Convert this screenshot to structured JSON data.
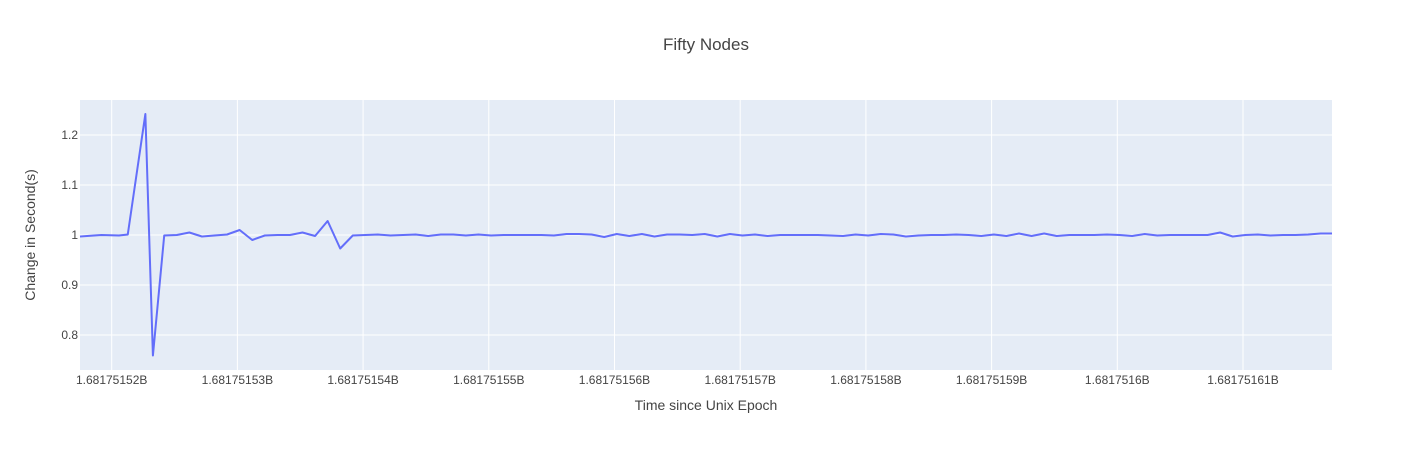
{
  "chart_data": {
    "type": "line",
    "title": "Fifty Nodes",
    "xlabel": "Time since Unix Epoch",
    "ylabel": "Change in Second(s)",
    "colors": {
      "line": "#636efa",
      "plot_bg": "#e5ecf6",
      "grid": "#ffffff",
      "text": "#444444"
    },
    "grid": true,
    "legend": "none",
    "xlim": [
      1681751517.48,
      1681751617.08
    ],
    "ylim": [
      0.73,
      1.27
    ],
    "x_ticks": [
      {
        "value": 1681751520,
        "label": "1.68175152B"
      },
      {
        "value": 1681751530,
        "label": "1.68175153B"
      },
      {
        "value": 1681751540,
        "label": "1.68175154B"
      },
      {
        "value": 1681751550,
        "label": "1.68175155B"
      },
      {
        "value": 1681751560,
        "label": "1.68175156B"
      },
      {
        "value": 1681751570,
        "label": "1.68175157B"
      },
      {
        "value": 1681751580,
        "label": "1.68175158B"
      },
      {
        "value": 1681751590,
        "label": "1.68175159B"
      },
      {
        "value": 1681751600,
        "label": "1.6817516B"
      },
      {
        "value": 1681751610,
        "label": "1.68175161B"
      }
    ],
    "y_ticks": [
      {
        "value": 0.8,
        "label": "0.8"
      },
      {
        "value": 0.9,
        "label": "0.9"
      },
      {
        "value": 1.0,
        "label": "1"
      },
      {
        "value": 1.1,
        "label": "1.1"
      },
      {
        "value": 1.2,
        "label": "1.2"
      }
    ],
    "series": [
      {
        "x": [
          1681751517.48,
          1681751519.18,
          1681751520.58,
          1681751521.28,
          1681751522.68,
          1681751523.28,
          1681751524.18,
          1681751525.18,
          1681751526.18,
          1681751527.18,
          1681751528.18,
          1681751529.18,
          1681751530.18,
          1681751531.18,
          1681751532.18,
          1681751533.18,
          1681751534.18,
          1681751535.18,
          1681751536.18,
          1681751537.18,
          1681751538.18,
          1681751539.18,
          1681751540.18,
          1681751541.18,
          1681751542.18,
          1681751543.18,
          1681751544.18,
          1681751545.18,
          1681751546.18,
          1681751547.18,
          1681751548.18,
          1681751549.18,
          1681751550.18,
          1681751551.18,
          1681751552.18,
          1681751553.18,
          1681751554.18,
          1681751555.18,
          1681751556.18,
          1681751557.18,
          1681751558.18,
          1681751559.18,
          1681751560.18,
          1681751561.18,
          1681751562.18,
          1681751563.18,
          1681751564.18,
          1681751565.18,
          1681751566.18,
          1681751567.18,
          1681751568.18,
          1681751569.18,
          1681751570.18,
          1681751571.18,
          1681751572.18,
          1681751573.18,
          1681751574.18,
          1681751575.18,
          1681751576.18,
          1681751577.18,
          1681751578.18,
          1681751579.18,
          1681751580.18,
          1681751581.18,
          1681751582.18,
          1681751583.18,
          1681751584.18,
          1681751585.18,
          1681751586.18,
          1681751587.18,
          1681751588.18,
          1681751589.18,
          1681751590.18,
          1681751591.18,
          1681751592.18,
          1681751593.18,
          1681751594.18,
          1681751595.18,
          1681751596.18,
          1681751597.18,
          1681751598.18,
          1681751599.18,
          1681751600.18,
          1681751601.18,
          1681751602.18,
          1681751603.18,
          1681751604.18,
          1681751605.18,
          1681751606.18,
          1681751607.18,
          1681751608.18,
          1681751609.18,
          1681751610.18,
          1681751611.18,
          1681751612.18,
          1681751613.18,
          1681751614.18,
          1681751615.18,
          1681751616.18,
          1681751617.08
        ],
        "values": [
          0.997,
          1.0,
          0.999,
          1.001,
          1.242,
          0.759,
          0.999,
          1.0,
          1.005,
          0.997,
          0.999,
          1.001,
          1.01,
          0.99,
          0.999,
          1.0,
          1.0,
          1.005,
          0.998,
          1.028,
          0.973,
          0.999,
          1.0,
          1.001,
          0.999,
          1.0,
          1.001,
          0.998,
          1.001,
          1.001,
          0.999,
          1.001,
          0.999,
          1.0,
          1.0,
          1.0,
          1.0,
          0.999,
          1.002,
          1.002,
          1.001,
          0.996,
          1.002,
          0.998,
          1.002,
          0.997,
          1.001,
          1.001,
          1.0,
          1.002,
          0.997,
          1.002,
          0.999,
          1.001,
          0.998,
          1.0,
          1.0,
          1.0,
          1.0,
          0.999,
          0.998,
          1.001,
          0.999,
          1.002,
          1.001,
          0.997,
          0.999,
          1.0,
          1.0,
          1.001,
          1.0,
          0.998,
          1.001,
          0.998,
          1.003,
          0.998,
          1.003,
          0.998,
          1.0,
          1.0,
          1.0,
          1.001,
          1.0,
          0.998,
          1.002,
          0.999,
          1.0,
          1.0,
          1.0,
          1.0,
          1.005,
          0.997,
          1.0,
          1.001,
          0.999,
          1.0,
          1.0,
          1.001,
          1.003,
          1.003
        ]
      }
    ]
  }
}
